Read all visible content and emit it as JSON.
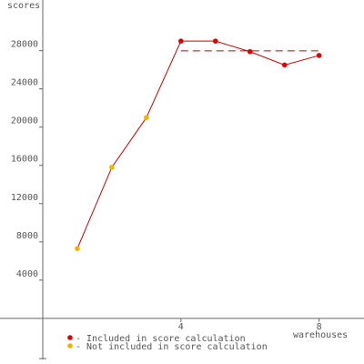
{
  "chart_data": {
    "type": "line",
    "y_label": "scores",
    "x_label": "warehouses",
    "x": [
      1,
      2,
      3,
      4,
      5,
      6,
      7,
      8
    ],
    "values": [
      7300,
      15800,
      21000,
      29000,
      29000,
      27900,
      26500,
      27500
    ],
    "line_color": "#cc0000",
    "point_group": [
      1,
      1,
      1,
      0,
      0,
      0,
      0,
      0
    ],
    "groups": [
      {
        "name": "- Included in score calculation",
        "color": "#dd0000"
      },
      {
        "name": "- Not included in score calculation",
        "color": "#f0b400"
      }
    ],
    "score": 27980,
    "score_range": [
      4,
      8
    ],
    "xlim": [
      0,
      9.3
    ],
    "ylim": [
      -4300,
      33300
    ],
    "xticks": [
      4,
      8
    ],
    "yticks": [
      4000,
      8000,
      12000,
      16000,
      20000,
      24000,
      28000
    ]
  }
}
